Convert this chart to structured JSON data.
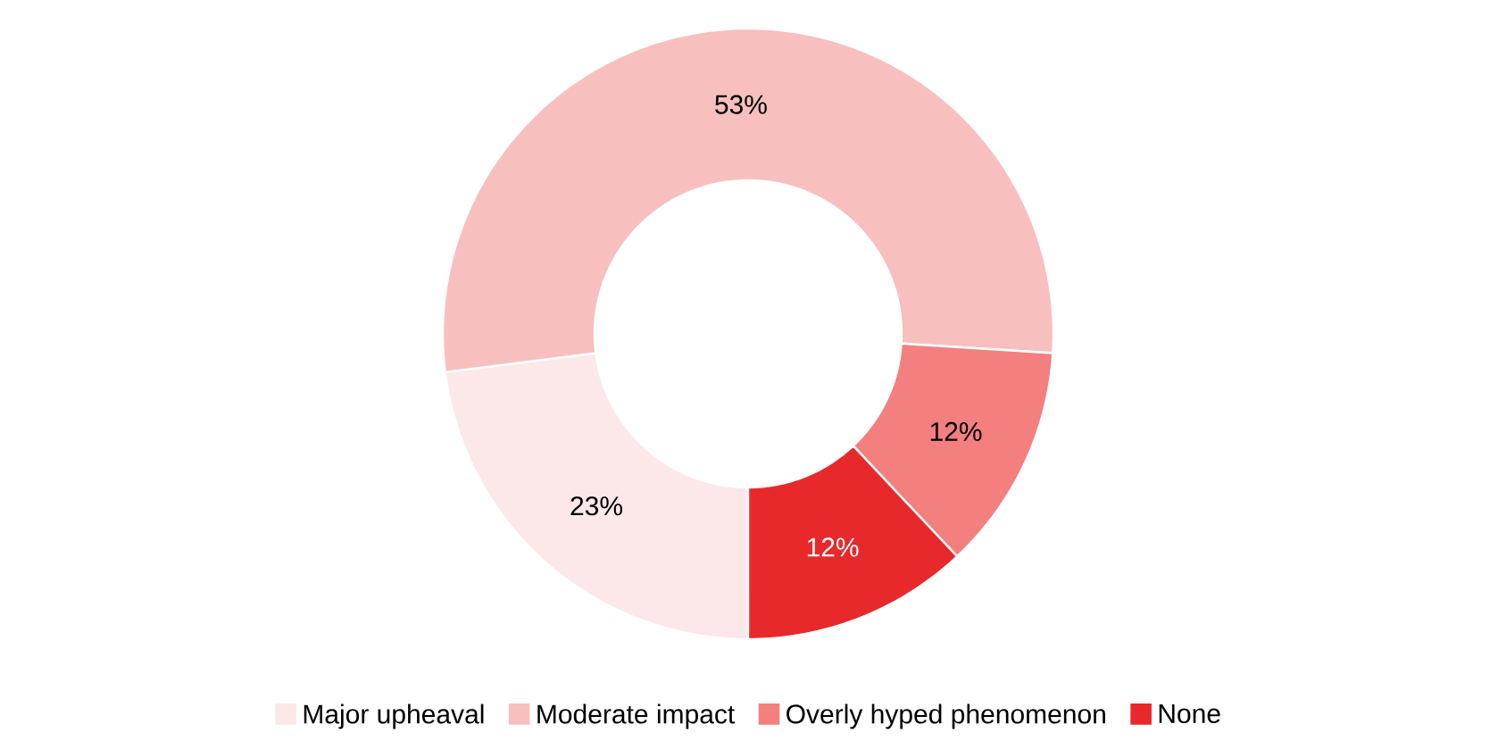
{
  "chart_data": {
    "type": "donut",
    "categories": [
      "Major upheaval",
      "Moderate impact",
      "Overly hyped phenomenon",
      "None"
    ],
    "values": [
      23,
      53,
      12,
      12
    ],
    "colors": [
      "#fce8e9",
      "#f8bfbf",
      "#f47f7f",
      "#e8292b"
    ],
    "value_labels": [
      "23%",
      "53%",
      "12%",
      "12%"
    ],
    "legend": "bottom"
  }
}
